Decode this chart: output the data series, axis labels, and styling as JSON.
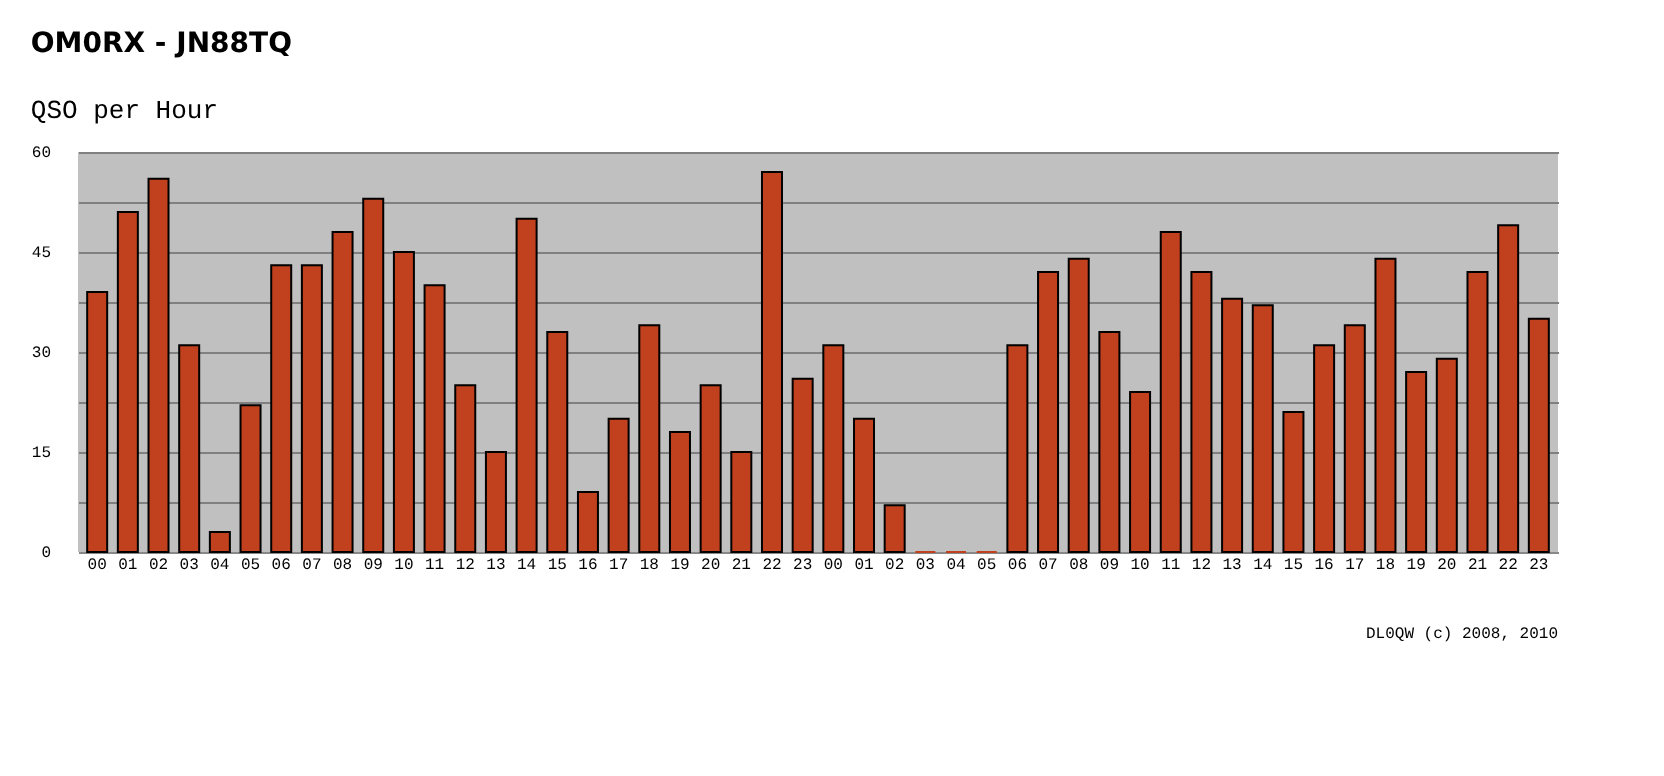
{
  "chart_data": {
    "type": "bar",
    "title": "OM0RX - JN88TQ",
    "subtitle": "QSO per Hour",
    "categories": [
      "00",
      "01",
      "02",
      "03",
      "04",
      "05",
      "06",
      "07",
      "08",
      "09",
      "10",
      "11",
      "12",
      "13",
      "14",
      "15",
      "16",
      "17",
      "18",
      "19",
      "20",
      "21",
      "22",
      "23",
      "00",
      "01",
      "02",
      "03",
      "04",
      "05",
      "06",
      "07",
      "08",
      "09",
      "10",
      "11",
      "12",
      "13",
      "14",
      "15",
      "16",
      "17",
      "18",
      "19",
      "20",
      "21",
      "22",
      "23"
    ],
    "values": [
      39,
      51,
      56,
      31,
      3,
      22,
      43,
      43,
      48,
      53,
      45,
      40,
      25,
      15,
      50,
      33,
      9,
      20,
      34,
      18,
      25,
      15,
      57,
      26,
      31,
      20,
      7,
      0,
      0,
      0,
      31,
      42,
      44,
      33,
      24,
      48,
      42,
      38,
      37,
      21,
      31,
      34,
      44,
      27,
      29,
      42,
      49,
      35
    ],
    "color": "#c1401e",
    "ylim": [
      0,
      60
    ],
    "yticks": [
      0,
      {
        "value": 7.5,
        "label": null
      },
      15,
      {
        "value": 22.5,
        "label": null
      },
      30,
      {
        "value": 37.5,
        "label": null
      },
      45,
      {
        "value": 52.5,
        "label": null
      },
      60
    ],
    "grid": "y",
    "annotations": [
      "DL0QW (c) 2008, 2010"
    ]
  }
}
